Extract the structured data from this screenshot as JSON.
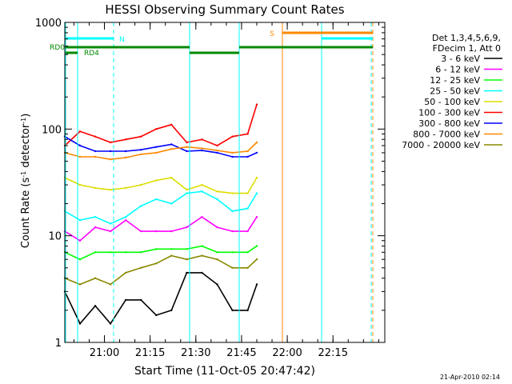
{
  "chart_data": {
    "type": "line",
    "title": "HESSI Observing Summary Count Rates",
    "xlabel": "Start Time (11-Oct-05 20:47:42)",
    "ylabel": "Count Rate (s",
    "ylabel_sup1": "-1",
    "ylabel_mid": " detector",
    "ylabel_sup2": "-1",
    "ylabel_end": ")",
    "footer": "21-Apr-2010 02:14",
    "y_scale": "log",
    "ylim": [
      1,
      1000
    ],
    "xlim_minutes_after_2047": [
      0,
      105
    ],
    "y_ticks": [
      {
        "value": 1,
        "label": "1"
      },
      {
        "value": 10,
        "label": "10"
      },
      {
        "value": 100,
        "label": "100"
      },
      {
        "value": 1000,
        "label": "1000"
      }
    ],
    "x_ticks": [
      {
        "time": "21:00",
        "minute": 13,
        "label": "21:00"
      },
      {
        "time": "21:15",
        "minute": 28,
        "label": "21:15"
      },
      {
        "time": "21:30",
        "minute": 43,
        "label": "21:30"
      },
      {
        "time": "21:45",
        "minute": 58,
        "label": "21:45"
      },
      {
        "time": "22:00",
        "minute": 73,
        "label": "22:00"
      },
      {
        "time": "22:15",
        "minute": 88,
        "label": "22:15"
      }
    ],
    "legend": {
      "header": [
        "Det 1,3,4,5,6,9,",
        "FDecim 1, Att 0"
      ],
      "entries": [
        {
          "label": "3 - 6 keV",
          "color": "#000000"
        },
        {
          "label": "6 - 12 keV",
          "color": "#ff00ff"
        },
        {
          "label": "12 - 25 keV",
          "color": "#00ff00"
        },
        {
          "label": "25 - 50 keV",
          "color": "#00ffff"
        },
        {
          "label": "50 - 100 keV",
          "color": "#dddd00"
        },
        {
          "label": "100 - 300 keV",
          "color": "#ff0000"
        },
        {
          "label": "300 - 800 keV",
          "color": "#0000ff"
        },
        {
          "label": "800 - 7000 keV",
          "color": "#ff8800"
        },
        {
          "label": "7000 - 20000 keV",
          "color": "#888800"
        }
      ]
    },
    "flags": [
      {
        "label": "N",
        "color": "#00ffff"
      },
      {
        "label": "S",
        "color": "#ff8800"
      },
      {
        "label": "RD0",
        "color": "#008800"
      },
      {
        "label": "RD4",
        "color": "#008800"
      }
    ],
    "series": [
      {
        "name": "3 - 6 keV",
        "color": "#000000",
        "x": [
          0,
          5,
          10,
          15,
          20,
          25,
          30,
          35,
          40,
          45,
          50,
          55,
          60,
          63
        ],
        "values": [
          3,
          1.5,
          2.2,
          1.5,
          2.5,
          2.5,
          1.8,
          2.0,
          4.5,
          4.5,
          3.5,
          2.0,
          2.0,
          3.5
        ]
      },
      {
        "name": "6 - 12 keV",
        "color": "#ff00ff",
        "x": [
          0,
          5,
          10,
          15,
          20,
          25,
          30,
          35,
          40,
          45,
          50,
          55,
          60,
          63
        ],
        "values": [
          11,
          9,
          12,
          11,
          14,
          11,
          11,
          11,
          12,
          15,
          12,
          11,
          11,
          15
        ]
      },
      {
        "name": "12 - 25 keV",
        "color": "#00ff00",
        "x": [
          0,
          5,
          10,
          15,
          20,
          25,
          30,
          35,
          40,
          45,
          50,
          55,
          60,
          63
        ],
        "values": [
          7,
          6,
          7,
          7,
          7,
          7,
          7.5,
          7.5,
          7.5,
          8,
          7,
          7,
          7,
          8
        ]
      },
      {
        "name": "25 - 50 keV",
        "color": "#00ffff",
        "x": [
          0,
          5,
          10,
          15,
          20,
          25,
          30,
          35,
          40,
          45,
          50,
          55,
          60,
          63
        ],
        "values": [
          17,
          14,
          15,
          13,
          15,
          19,
          22,
          20,
          25,
          26,
          22,
          17,
          18,
          25
        ]
      },
      {
        "name": "50 - 100 keV",
        "color": "#dddd00",
        "x": [
          0,
          5,
          10,
          15,
          20,
          25,
          30,
          35,
          40,
          45,
          50,
          55,
          60,
          63
        ],
        "values": [
          35,
          30,
          28,
          27,
          28,
          30,
          33,
          35,
          27,
          30,
          26,
          25,
          25,
          35
        ]
      },
      {
        "name": "100 - 300 keV",
        "color": "#ff0000",
        "x": [
          0,
          5,
          10,
          15,
          20,
          25,
          30,
          35,
          40,
          45,
          50,
          55,
          60,
          63
        ],
        "values": [
          70,
          95,
          85,
          75,
          80,
          85,
          100,
          110,
          75,
          80,
          70,
          85,
          90,
          170
        ]
      },
      {
        "name": "300 - 800 keV",
        "color": "#0000ff",
        "x": [
          0,
          5,
          10,
          15,
          20,
          25,
          30,
          35,
          40,
          45,
          50,
          55,
          60,
          63
        ],
        "values": [
          85,
          70,
          62,
          62,
          62,
          64,
          68,
          72,
          62,
          63,
          60,
          55,
          55,
          60
        ]
      },
      {
        "name": "800 - 7000 keV",
        "color": "#ff8800",
        "x": [
          0,
          5,
          10,
          15,
          20,
          25,
          30,
          35,
          40,
          45,
          50,
          55,
          60,
          63
        ],
        "values": [
          60,
          55,
          55,
          52,
          54,
          58,
          60,
          65,
          68,
          66,
          63,
          60,
          62,
          75
        ]
      },
      {
        "name": "7000 - 20000 keV",
        "color": "#888800",
        "x": [
          0,
          5,
          10,
          15,
          20,
          25,
          30,
          35,
          40,
          45,
          50,
          55,
          60,
          63
        ],
        "values": [
          4,
          3.5,
          4,
          3.5,
          4.5,
          5,
          5.5,
          6.5,
          6,
          6.5,
          6,
          5,
          5,
          6
        ]
      }
    ]
  }
}
